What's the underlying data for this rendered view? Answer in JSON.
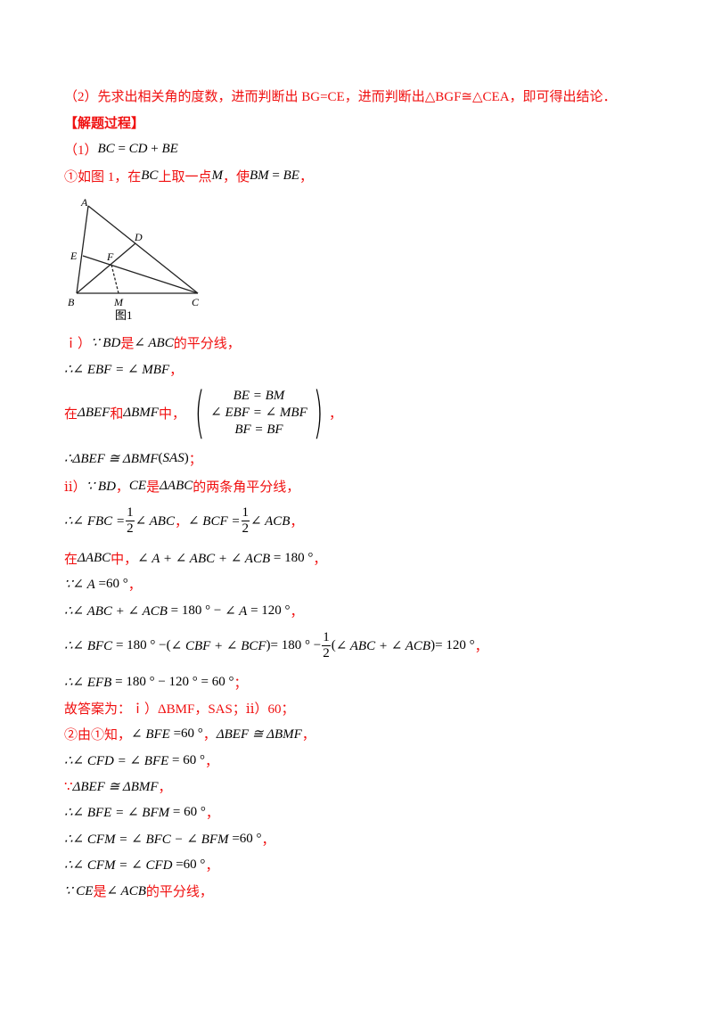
{
  "lines": [
    {
      "segs": [
        {
          "t": "（2）先求出相关角的度数，进而判断出 BG=CE，进而判断出△BGF≅△CEA，即可得出结论．",
          "c": "r"
        }
      ]
    },
    {
      "segs": [
        {
          "t": "【解题过程】",
          "c": "b"
        }
      ]
    },
    {
      "segs": [
        {
          "t": "（1）",
          "c": "r"
        },
        {
          "t": "BC",
          "c": "k"
        },
        {
          "t": " = ",
          "c": "n"
        },
        {
          "t": "CD",
          "c": "k"
        },
        {
          "t": " + ",
          "c": "n"
        },
        {
          "t": "BE",
          "c": "k"
        }
      ]
    },
    {
      "segs": [
        {
          "t": "①如图 1，在",
          "c": "r"
        },
        {
          "t": "BC",
          "c": "k"
        },
        {
          "t": "上取一点",
          "c": "r"
        },
        {
          "t": "M",
          "c": "k"
        },
        {
          "t": "，使",
          "c": "r"
        },
        {
          "t": "BM",
          "c": "k"
        },
        {
          "t": " = ",
          "c": "n"
        },
        {
          "t": "BE",
          "c": "k"
        },
        {
          "t": "，",
          "c": "r"
        }
      ]
    },
    {
      "segs": [
        {
          "t": "ｉ）",
          "c": "r"
        },
        {
          "t": "∵ BD",
          "c": "k"
        },
        {
          "t": "是",
          "c": "r"
        },
        {
          "t": "∠ ABC",
          "c": "k"
        },
        {
          "t": "的平分线，",
          "c": "r"
        }
      ]
    },
    {
      "segs": [
        {
          "t": "∴∠ EBF = ∠ MBF",
          "c": "k"
        },
        {
          "t": "，",
          "c": "r"
        }
      ]
    },
    {
      "segs": [
        {
          "t": "在",
          "c": "r"
        },
        {
          "t": "ΔBEF",
          "c": "k"
        },
        {
          "t": "和",
          "c": "r"
        },
        {
          "t": "ΔBMF",
          "c": "k"
        },
        {
          "t": "中，",
          "c": "r"
        },
        {
          "sys": [
            "BE = BM",
            "∠ EBF = ∠ MBF",
            "BF = BF"
          ]
        },
        {
          "t": "，",
          "c": "r"
        }
      ]
    },
    {
      "segs": [
        {
          "t": "∴ΔBEF ≅ ΔBMF",
          "c": "k"
        },
        {
          "t": "(",
          "c": "n"
        },
        {
          "t": "SAS",
          "c": "k"
        },
        {
          "t": ")",
          "c": "n"
        },
        {
          "t": "；",
          "c": "r"
        }
      ]
    },
    {
      "segs": [
        {
          "t": "ⅱ）",
          "c": "r"
        },
        {
          "t": "∵ BD",
          "c": "k"
        },
        {
          "t": "，",
          "c": "r"
        },
        {
          "t": "CE",
          "c": "k"
        },
        {
          "t": "是",
          "c": "r"
        },
        {
          "t": "ΔABC",
          "c": "k"
        },
        {
          "t": "的两条角平分线，",
          "c": "r"
        }
      ]
    },
    {
      "segs": [
        {
          "t": "∴∠ FBC =",
          "c": "k"
        },
        {
          "frac": [
            "1",
            "2"
          ]
        },
        {
          "t": "∠ ABC",
          "c": "k"
        },
        {
          "t": "，",
          "c": "r"
        },
        {
          "t": "∠ BCF =",
          "c": "k"
        },
        {
          "frac": [
            "1",
            "2"
          ]
        },
        {
          "t": "∠ ACB",
          "c": "k"
        },
        {
          "t": "，",
          "c": "r"
        }
      ]
    },
    {
      "segs": [
        {
          "t": "在",
          "c": "r"
        },
        {
          "t": "ΔABC",
          "c": "k"
        },
        {
          "t": "中，",
          "c": "r"
        },
        {
          "t": "∠ A + ∠ ABC + ∠ ACB",
          "c": "k"
        },
        {
          "t": " = 180 °",
          "c": "n"
        },
        {
          "t": "，",
          "c": "r"
        }
      ]
    },
    {
      "segs": [
        {
          "t": "∵∠ A",
          "c": "k"
        },
        {
          "t": " =60 °",
          "c": "n"
        },
        {
          "t": "，",
          "c": "r"
        }
      ]
    },
    {
      "segs": [
        {
          "t": "∴∠ ABC + ∠ ACB",
          "c": "k"
        },
        {
          "t": " = 180 ° − ",
          "c": "n"
        },
        {
          "t": "∠ A",
          "c": "k"
        },
        {
          "t": " = 120 °",
          "c": "n"
        },
        {
          "t": "，",
          "c": "r"
        }
      ]
    },
    {
      "segs": [
        {
          "t": "∴∠ BFC",
          "c": "k"
        },
        {
          "t": " = 180 ° −(",
          "c": "n"
        },
        {
          "t": "∠ CBF + ∠ BCF",
          "c": "k"
        },
        {
          "t": ")= 180 ° −",
          "c": "n"
        },
        {
          "frac": [
            "1",
            "2"
          ]
        },
        {
          "t": "(",
          "c": "n"
        },
        {
          "t": "∠ ABC + ∠ ACB",
          "c": "k"
        },
        {
          "t": ")= 120 °",
          "c": "n"
        },
        {
          "t": "，",
          "c": "r"
        }
      ]
    },
    {
      "segs": [
        {
          "t": "∴∠ EFB",
          "c": "k"
        },
        {
          "t": " = 180 ° − 120 ° = 60 °",
          "c": "n"
        },
        {
          "t": "；",
          "c": "r"
        }
      ]
    },
    {
      "segs": [
        {
          "t": "故答案为：ｉ）ΔBMF，SAS；ⅱ）60；",
          "c": "r"
        }
      ]
    },
    {
      "segs": [
        {
          "t": "②由①知，",
          "c": "r"
        },
        {
          "t": "∠ BFE",
          "c": "k"
        },
        {
          "t": " =60 °",
          "c": "n"
        },
        {
          "t": "，",
          "c": "r"
        },
        {
          "t": "ΔBEF ≅ ΔBMF",
          "c": "k"
        },
        {
          "t": "，",
          "c": "r"
        }
      ]
    },
    {
      "segs": [
        {
          "t": "∴∠ CFD = ∠ BFE",
          "c": "k"
        },
        {
          "t": " = 60 °",
          "c": "n"
        },
        {
          "t": "，",
          "c": "r"
        }
      ]
    },
    {
      "segs": [
        {
          "t": "∵",
          "c": "r"
        },
        {
          "t": "ΔBEF ≅ ΔBMF",
          "c": "k"
        },
        {
          "t": "，",
          "c": "r"
        }
      ]
    },
    {
      "segs": [
        {
          "t": "∴∠ BFE = ∠ BFM",
          "c": "k"
        },
        {
          "t": " = 60 °",
          "c": "n"
        },
        {
          "t": "，",
          "c": "r"
        }
      ]
    },
    {
      "segs": [
        {
          "t": "∴∠ CFM = ∠ BFC − ∠ BFM",
          "c": "k"
        },
        {
          "t": " =60 °",
          "c": "n"
        },
        {
          "t": "，",
          "c": "r"
        }
      ]
    },
    {
      "segs": [
        {
          "t": "∴∠ CFM = ∠ CFD",
          "c": "k"
        },
        {
          "t": " =60 °",
          "c": "n"
        },
        {
          "t": "，",
          "c": "r"
        }
      ]
    },
    {
      "segs": [
        {
          "t": "∵ CE",
          "c": "k"
        },
        {
          "t": "是",
          "c": "r"
        },
        {
          "t": "∠ ACB",
          "c": "k"
        },
        {
          "t": "的平分线，",
          "c": "r"
        }
      ]
    }
  ],
  "figure": {
    "labels": {
      "A": "A",
      "B": "B",
      "C": "C",
      "D": "D",
      "E": "E",
      "F": "F",
      "M": "M"
    },
    "caption": "图1"
  }
}
